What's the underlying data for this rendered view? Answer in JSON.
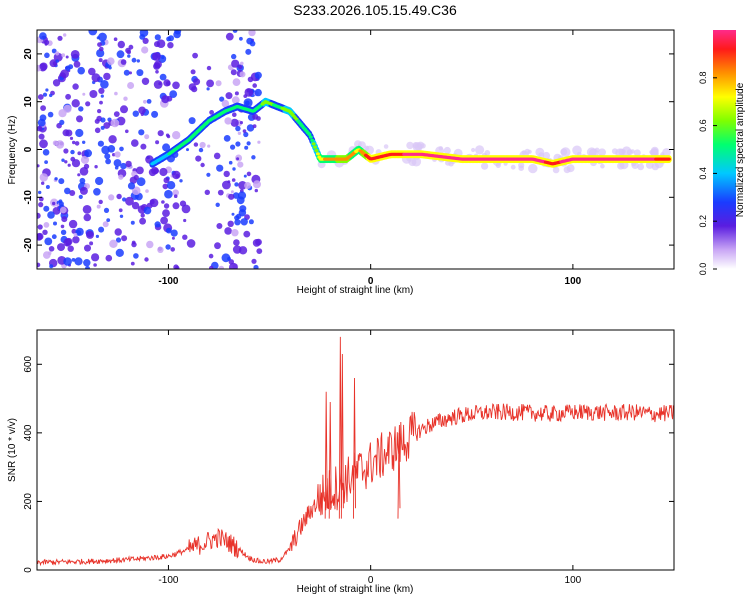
{
  "title": "S233.2026.105.15.49.C36",
  "chart_data": [
    {
      "type": "heatmap",
      "xlabel": "Height of straight line (km)",
      "ylabel": "Frequency (Hz)",
      "xlim": [
        -165,
        150
      ],
      "ylim": [
        -25,
        25
      ],
      "xticks": [
        -100,
        0,
        100
      ],
      "xtick_labels": [
        "-100",
        "0",
        "100"
      ],
      "yticks": [
        -20,
        -10,
        0,
        10,
        20
      ],
      "ytick_labels": [
        "-20",
        "-10",
        "0",
        "10",
        "20"
      ],
      "colorbar": {
        "label": "Normalized spectral amplitude",
        "range": [
          0,
          1
        ],
        "ticks": [
          0.0,
          0.2,
          0.4,
          0.6,
          0.8
        ],
        "tick_labels": [
          "0.0",
          "0.2",
          "0.4",
          "0.6",
          "0.8"
        ]
      },
      "ridge": {
        "height_km": [
          -108,
          -100,
          -90,
          -80,
          -72,
          -66,
          -58,
          -52,
          -46,
          -40,
          -34,
          -30,
          -25,
          -20,
          -12,
          -6,
          0,
          10,
          25,
          45,
          65,
          80,
          90,
          100,
          115,
          130,
          148
        ],
        "frequency_hz": [
          -3,
          -1,
          2,
          6,
          8,
          9,
          8,
          10,
          9,
          8,
          5,
          3,
          -2,
          -2,
          -2,
          0,
          -2,
          -1,
          -1,
          -2,
          -2,
          -2,
          -3,
          -2,
          -2,
          -2,
          -2
        ],
        "amplitude": [
          0.35,
          0.4,
          0.45,
          0.5,
          0.5,
          0.45,
          0.45,
          0.55,
          0.5,
          0.55,
          0.5,
          0.45,
          0.7,
          0.75,
          0.8,
          0.7,
          0.9,
          0.9,
          0.95,
          0.95,
          0.95,
          0.95,
          0.9,
          0.95,
          0.95,
          0.95,
          0.9
        ]
      }
    },
    {
      "type": "line",
      "xlabel": "Height of straight line (km)",
      "ylabel": "SNR (10 * v/v)",
      "xlim": [
        -165,
        150
      ],
      "ylim": [
        0,
        700
      ],
      "xticks": [
        -100,
        0,
        100
      ],
      "xtick_labels": [
        "-100",
        "0",
        "100"
      ],
      "yticks": [
        0,
        200,
        400,
        600
      ],
      "ytick_labels": [
        "0",
        "200",
        "400",
        "600"
      ],
      "series": [
        {
          "name": "SNR",
          "color": "#e8332a",
          "x": [
            -165,
            -140,
            -120,
            -100,
            -90,
            -80,
            -75,
            -70,
            -65,
            -60,
            -55,
            -50,
            -45,
            -40,
            -35,
            -30,
            -25,
            -20,
            -15,
            -10,
            -5,
            0,
            5,
            10,
            15,
            20,
            25,
            30,
            35,
            40,
            45,
            50,
            60,
            70,
            80,
            90,
            100,
            110,
            120,
            130,
            140,
            150
          ],
          "y": [
            22,
            25,
            30,
            40,
            60,
            85,
            95,
            80,
            60,
            35,
            25,
            25,
            30,
            60,
            120,
            170,
            210,
            230,
            250,
            270,
            290,
            310,
            330,
            350,
            370,
            390,
            410,
            425,
            435,
            445,
            450,
            455,
            460,
            460,
            458,
            455,
            460,
            460,
            458,
            460,
            455,
            458
          ]
        }
      ],
      "spikes": [
        {
          "x": -22,
          "y": 520
        },
        {
          "x": -20,
          "y": 490
        },
        {
          "x": -15,
          "y": 680
        },
        {
          "x": -14,
          "y": 630
        },
        {
          "x": -8,
          "y": 560
        },
        {
          "x": 14,
          "y": 400
        }
      ]
    }
  ],
  "colors": {
    "snr_line": "#e8332a",
    "axis": "#000000"
  }
}
